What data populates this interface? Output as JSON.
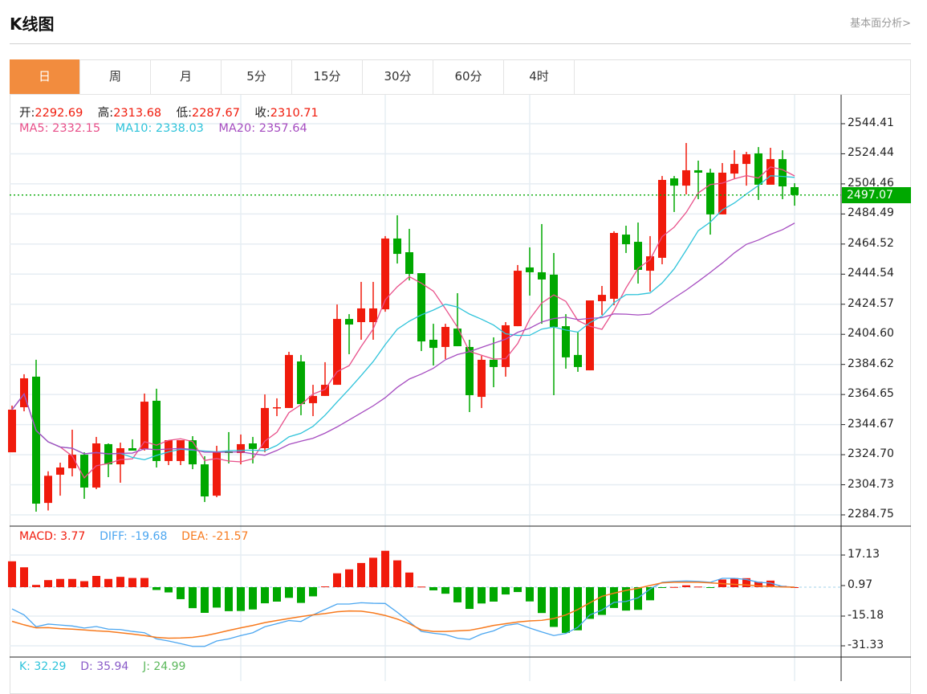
{
  "header": {
    "title": "K线图",
    "link": "基本面分析>"
  },
  "tabs": [
    {
      "label": "日",
      "active": true
    },
    {
      "label": "周"
    },
    {
      "label": "月"
    },
    {
      "label": "5分"
    },
    {
      "label": "15分"
    },
    {
      "label": "30分"
    },
    {
      "label": "60分"
    },
    {
      "label": "4时"
    }
  ],
  "ohlc_info": {
    "open_label": "开:",
    "open": "2292.69",
    "high_label": "高:",
    "high": "2313.68",
    "low_label": "低:",
    "low": "2287.67",
    "close_label": "收:",
    "close": "2310.71"
  },
  "ma_info": {
    "ma5": "MA5:  2332.15",
    "ma10": "MA10:  2338.03",
    "ma20": "MA20:  2357.64"
  },
  "macd_info": {
    "macd": "MACD: 3.77",
    "diff": "DIFF: -19.68",
    "dea": "DEA: -21.57"
  },
  "kdj_info": {
    "k": "K: 32.29",
    "d": "D: 35.94",
    "j": "J: 24.99"
  },
  "current_price": "2497.07",
  "colors": {
    "up": "#F01B0C",
    "down": "#00A800",
    "ma5": "#E8508A",
    "ma10": "#2EC3DA",
    "ma20": "#A64DC0",
    "diff": "#4BA6F0",
    "dea": "#F77A1E",
    "active_tab": "#F28C3E"
  },
  "chart_data": [
    {
      "type": "candlestick",
      "title": "K线图",
      "ylim": [
        2284.75,
        2544.41
      ],
      "y_ticks": [
        "2544.41",
        "2524.44",
        "2504.46",
        "2484.49",
        "2464.52",
        "2444.54",
        "2424.57",
        "2404.60",
        "2384.62",
        "2364.65",
        "2344.67",
        "2324.70",
        "2304.73",
        "2284.75"
      ],
      "current_price": 2497.07,
      "series_ma": [
        "MA5",
        "MA10",
        "MA20"
      ],
      "ohlc": [
        [
          2326.3,
          2357.3,
          2326.3,
          2354.6
        ],
        [
          2356.2,
          2378.1,
          2353.5,
          2375.4
        ],
        [
          2376.5,
          2387.7,
          2286.9,
          2292.2
        ],
        [
          2292.69,
          2313.68,
          2287.67,
          2310.71
        ],
        [
          2311.4,
          2319.4,
          2297.5,
          2316.2
        ],
        [
          2315.7,
          2341.3,
          2310.3,
          2324.7
        ],
        [
          2324.7,
          2326.3,
          2295.4,
          2302.9
        ],
        [
          2302.9,
          2336.5,
          2301.8,
          2332.2
        ],
        [
          2331.7,
          2332.2,
          2309.8,
          2318.3
        ],
        [
          2318.3,
          2332.7,
          2306.1,
          2329.0
        ],
        [
          2329.0,
          2334.9,
          2327.4,
          2327.4
        ],
        [
          2328.5,
          2365.3,
          2327.4,
          2359.9
        ],
        [
          2360.5,
          2368.5,
          2316.2,
          2320.5
        ],
        [
          2320.5,
          2334.3,
          2317.8,
          2334.3
        ],
        [
          2320.5,
          2334.3,
          2317.8,
          2334.3
        ],
        [
          2334.3,
          2337.0,
          2315.1,
          2318.3
        ],
        [
          2318.3,
          2323.7,
          2293.3,
          2297.0
        ],
        [
          2297.5,
          2330.6,
          2296.5,
          2326.9
        ],
        [
          2326.9,
          2339.7,
          2318.9,
          2325.8
        ],
        [
          2325.8,
          2338.1,
          2318.3,
          2331.7
        ],
        [
          2332.2,
          2336.5,
          2318.9,
          2328.5
        ],
        [
          2329.0,
          2364.7,
          2326.3,
          2355.7
        ],
        [
          2355.7,
          2362.1,
          2350.3,
          2356.2
        ],
        [
          2355.7,
          2393.0,
          2355.7,
          2390.9
        ],
        [
          2386.6,
          2390.9,
          2350.9,
          2358.3
        ],
        [
          2358.9,
          2371.1,
          2350.3,
          2363.7
        ],
        [
          2363.7,
          2386.1,
          2363.7,
          2371.1
        ],
        [
          2371.1,
          2424.4,
          2371.1,
          2414.8
        ],
        [
          2414.8,
          2418.0,
          2391.4,
          2411.1
        ],
        [
          2412.7,
          2439.4,
          2401.0,
          2421.8
        ],
        [
          2412.7,
          2439.4,
          2401.0,
          2421.8
        ],
        [
          2421.2,
          2469.8,
          2419.6,
          2468.2
        ],
        [
          2468.2,
          2483.6,
          2451.6,
          2458.0
        ],
        [
          2459.1,
          2474.6,
          2440.4,
          2444.7
        ],
        [
          2445.2,
          2445.2,
          2393.5,
          2399.9
        ],
        [
          2401.0,
          2411.6,
          2383.9,
          2395.6
        ],
        [
          2396.2,
          2411.6,
          2388.2,
          2409.5
        ],
        [
          2408.4,
          2431.9,
          2396.7,
          2396.7
        ],
        [
          2396.2,
          2401.0,
          2353.0,
          2364.2
        ],
        [
          2363.1,
          2390.3,
          2355.7,
          2387.7
        ],
        [
          2387.7,
          2402.6,
          2369.5,
          2382.9
        ],
        [
          2382.9,
          2412.7,
          2376.5,
          2410.6
        ],
        [
          2410.0,
          2450.6,
          2410.0,
          2446.8
        ],
        [
          2449.0,
          2462.3,
          2430.3,
          2445.8
        ],
        [
          2445.8,
          2477.8,
          2411.6,
          2441.0
        ],
        [
          2444.2,
          2458.6,
          2364.2,
          2409.5
        ],
        [
          2410.0,
          2418.0,
          2381.8,
          2389.3
        ],
        [
          2390.9,
          2406.3,
          2379.7,
          2382.9
        ],
        [
          2380.7,
          2427.1,
          2380.7,
          2427.1
        ],
        [
          2426.6,
          2436.7,
          2417.5,
          2430.8
        ],
        [
          2428.2,
          2473.0,
          2423.9,
          2471.9
        ],
        [
          2470.8,
          2476.7,
          2458.6,
          2464.4
        ],
        [
          2466.0,
          2478.8,
          2438.3,
          2447.4
        ],
        [
          2446.8,
          2469.8,
          2433.0,
          2456.4
        ],
        [
          2455.4,
          2509.7,
          2451.1,
          2507.1
        ],
        [
          2508.1,
          2509.7,
          2485.8,
          2503.3
        ],
        [
          2503.3,
          2531.6,
          2497.5,
          2513.5
        ],
        [
          2513.5,
          2519.9,
          2494.3,
          2511.9
        ],
        [
          2511.9,
          2514.5,
          2470.8,
          2484.2
        ],
        [
          2484.2,
          2518.3,
          2484.2,
          2511.9
        ],
        [
          2511.3,
          2526.8,
          2508.1,
          2517.7
        ],
        [
          2517.7,
          2525.7,
          2503.3,
          2524.1
        ],
        [
          2524.7,
          2528.9,
          2493.8,
          2503.9
        ],
        [
          2503.9,
          2528.4,
          2503.9,
          2520.9
        ],
        [
          2520.9,
          2526.8,
          2494.3,
          2502.8
        ],
        [
          2502.3,
          2504.9,
          2490.0,
          2497.07
        ]
      ]
    },
    {
      "type": "bar+line",
      "title": "MACD",
      "y_ticks": [
        "17.13",
        "0.97",
        "-15.18",
        "-31.33"
      ],
      "macd": [
        13.8,
        10.6,
        1.2,
        3.77,
        4.4,
        4.4,
        3.2,
        6.0,
        4.4,
        5.5,
        4.9,
        4.9,
        -1.5,
        -2.8,
        -6.4,
        -11.2,
        -13.7,
        -10.9,
        -12.8,
        -12.7,
        -11.9,
        -8.6,
        -7.7,
        -5.7,
        -8.4,
        -4.9,
        0.4,
        7.4,
        9.5,
        12.9,
        15.7,
        19.4,
        14.3,
        7.8,
        0.3,
        -1.7,
        -3.5,
        -8.1,
        -11.6,
        -8.7,
        -7.7,
        -3.9,
        -2.6,
        -7.6,
        -13.8,
        -21.2,
        -24.4,
        -23.0,
        -16.9,
        -14.8,
        -11.1,
        -12.5,
        -12.1,
        -7.0,
        -0.1,
        0.1,
        1.0,
        0.3,
        -0.1,
        4.1,
        4.8,
        4.8,
        2.9,
        3.5,
        0.7,
        0
      ],
      "diff": [
        -11.6,
        -14.8,
        -21.1,
        -19.68,
        -20.2,
        -20.7,
        -21.8,
        -21.0,
        -22.4,
        -22.6,
        -23.6,
        -24.3,
        -27.6,
        -28.7,
        -30.1,
        -31.6,
        -31.6,
        -28.7,
        -27.6,
        -25.8,
        -24.3,
        -21.1,
        -19.5,
        -17.8,
        -18.3,
        -14.8,
        -11.9,
        -9.0,
        -9.0,
        -8.3,
        -8.6,
        -8.7,
        -13.4,
        -18.5,
        -23.6,
        -24.6,
        -25.3,
        -27.2,
        -27.9,
        -25.0,
        -23.3,
        -20.4,
        -19.5,
        -21.8,
        -23.9,
        -25.8,
        -24.7,
        -21.4,
        -14.8,
        -12.2,
        -8.1,
        -7.6,
        -5.7,
        -1.0,
        2.6,
        3.1,
        3.3,
        3.1,
        2.6,
        4.7,
        4.7,
        4.1,
        2.6,
        2.2,
        0.4,
        0
      ],
      "dea": [
        -18.2,
        -20.1,
        -21.7,
        -21.57,
        -22.1,
        -22.4,
        -22.8,
        -23.3,
        -23.6,
        -24.3,
        -25.0,
        -25.8,
        -26.8,
        -27.2,
        -27.1,
        -26.8,
        -25.9,
        -24.6,
        -23.1,
        -21.7,
        -20.4,
        -18.9,
        -17.8,
        -16.7,
        -15.7,
        -14.8,
        -14.1,
        -13.1,
        -12.7,
        -12.8,
        -13.7,
        -15.1,
        -17.0,
        -19.5,
        -22.8,
        -23.6,
        -23.6,
        -23.3,
        -23.0,
        -21.8,
        -20.4,
        -19.5,
        -18.6,
        -18.0,
        -17.7,
        -16.7,
        -14.8,
        -11.9,
        -8.3,
        -4.9,
        -3.2,
        -1.7,
        -0.6,
        0.9,
        2.3,
        2.6,
        2.6,
        2.6,
        2.3,
        1.9,
        1.5,
        1.2,
        0.7,
        0.4,
        0.1,
        0
      ]
    }
  ]
}
